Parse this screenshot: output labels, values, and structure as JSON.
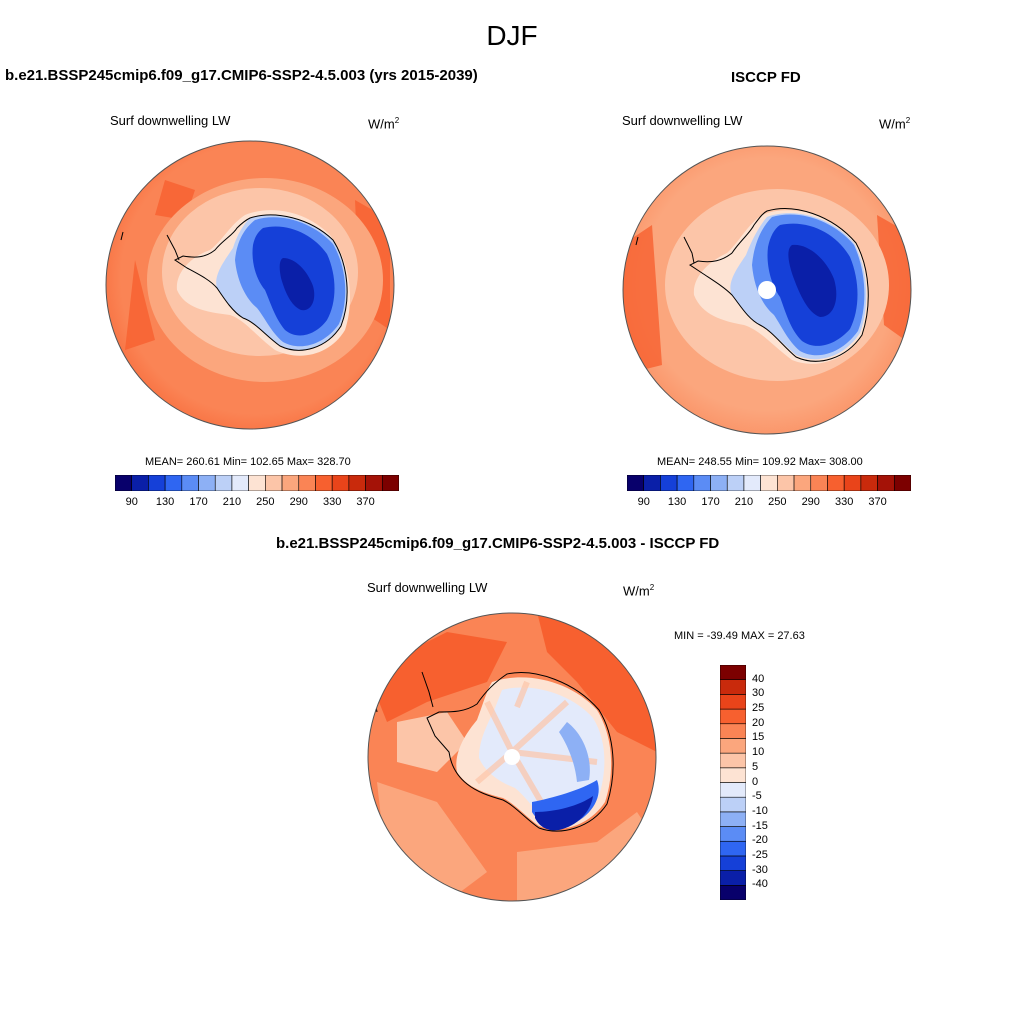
{
  "figure": {
    "season": "DJF"
  },
  "panels": [
    {
      "title": "b.e21.BSSP245cmip6.f09_g17.CMIP6-SSP2-4.5.003 (yrs 2015-2039)",
      "variable": "Surf downwelling LW",
      "units_base": "W/m",
      "units_exp": "2",
      "stats": "MEAN= 260.61  Min= 102.65  Max= 328.70"
    },
    {
      "title": "ISCCP FD",
      "variable": "Surf downwelling LW",
      "units_base": "W/m",
      "units_exp": "2",
      "stats": "MEAN= 248.55  Min= 109.92  Max= 308.00"
    },
    {
      "title": "b.e21.BSSP245cmip6.f09_g17.CMIP6-SSP2-4.5.003 - ISCCP FD",
      "variable": "Surf downwelling LW",
      "units_base": "W/m",
      "units_exp": "2",
      "stats": "MIN = -39.49 MAX =  27.63"
    }
  ],
  "colorbar_abs": {
    "colors": [
      "#08006b",
      "#0a1fa8",
      "#1540d8",
      "#2f66f2",
      "#5b8cf5",
      "#8db0f5",
      "#bcd0f7",
      "#e3eafb",
      "#fde3d3",
      "#fcc5a8",
      "#fba67d",
      "#fa8455",
      "#f7602f",
      "#e9441a",
      "#c92a0c",
      "#a41207",
      "#7c0000"
    ],
    "tick_labels": [
      "90",
      "130",
      "170",
      "210",
      "250",
      "290",
      "330",
      "370"
    ]
  },
  "colorbar_diff": {
    "colors": [
      "#08006b",
      "#0a1fa8",
      "#1540d8",
      "#2f66f2",
      "#5b8cf5",
      "#8db0f5",
      "#bcd0f7",
      "#e3eafb",
      "#fde3d3",
      "#fcc5a8",
      "#fba67d",
      "#fa8455",
      "#f7602f",
      "#e9441a",
      "#c92a0c",
      "#7c0000"
    ],
    "tick_labels": [
      "40",
      "30",
      "25",
      "20",
      "15",
      "10",
      "5",
      "0",
      "-5",
      "-10",
      "-15",
      "-20",
      "-25",
      "-30",
      "-40"
    ]
  }
}
